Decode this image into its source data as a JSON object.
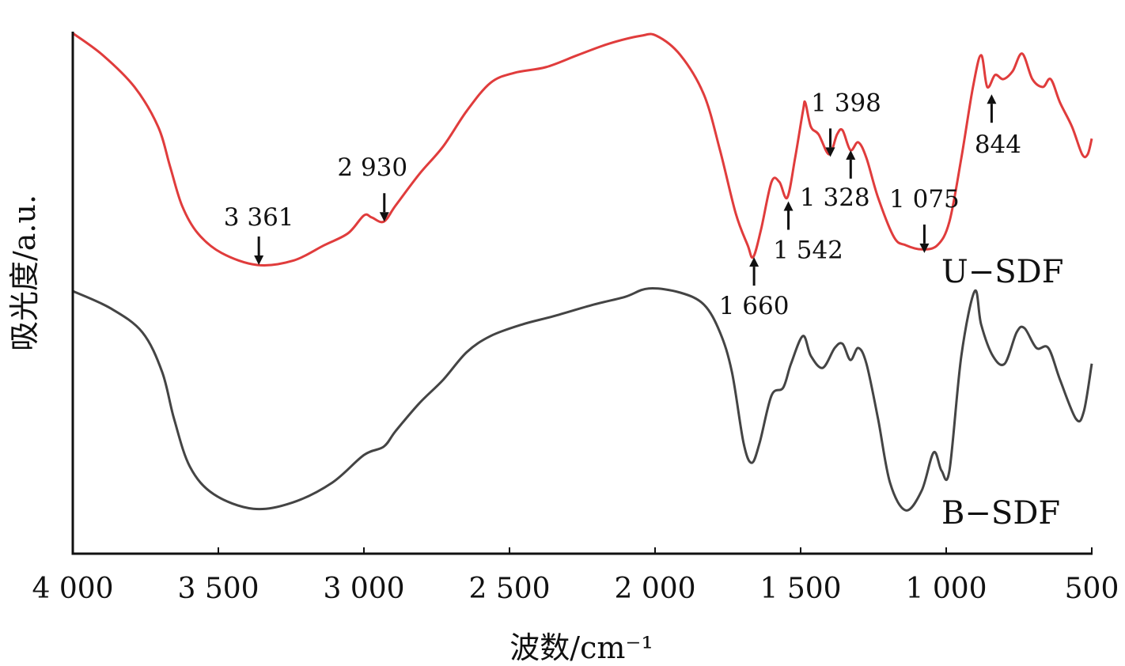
{
  "chart_data": {
    "type": "line",
    "title": "",
    "xlabel": "波数/cm⁻¹",
    "ylabel": "吸光度/a.u.",
    "xlim": [
      4000,
      500
    ],
    "ylim": [
      0,
      100
    ],
    "x_ticks": [
      4000,
      3500,
      3000,
      2500,
      2000,
      1500,
      1000,
      500
    ],
    "x_tick_labels": [
      "4 000",
      "3 500",
      "3 000",
      "2 500",
      "2 000",
      "1 500",
      "1 000",
      "500"
    ],
    "grid": false,
    "series": [
      {
        "name": "U−SDF",
        "color": "#e03c3c",
        "points": [
          [
            4000,
            99.7
          ],
          [
            3897,
            95.5
          ],
          [
            3788,
            89.4
          ],
          [
            3707,
            81.8
          ],
          [
            3666,
            74.2
          ],
          [
            3625,
            66.7
          ],
          [
            3571,
            61.4
          ],
          [
            3489,
            57.6
          ],
          [
            3367,
            55.3
          ],
          [
            3245,
            56.1
          ],
          [
            3136,
            59.1
          ],
          [
            3054,
            61.4
          ],
          [
            3000,
            64.8
          ],
          [
            2973,
            64.4
          ],
          [
            2932,
            63.6
          ],
          [
            2891,
            66.7
          ],
          [
            2810,
            72.7
          ],
          [
            2728,
            78.0
          ],
          [
            2647,
            84.8
          ],
          [
            2565,
            90.2
          ],
          [
            2484,
            92.1
          ],
          [
            2375,
            93.2
          ],
          [
            2266,
            95.5
          ],
          [
            2158,
            97.7
          ],
          [
            2049,
            99.2
          ],
          [
            1995,
            99.2
          ],
          [
            1913,
            95.5
          ],
          [
            1832,
            87.9
          ],
          [
            1777,
            77.3
          ],
          [
            1723,
            65.2
          ],
          [
            1682,
            59.1
          ],
          [
            1663,
            56.8
          ],
          [
            1636,
            62.1
          ],
          [
            1600,
            71.2
          ],
          [
            1573,
            71.2
          ],
          [
            1546,
            68.2
          ],
          [
            1519,
            75.8
          ],
          [
            1492,
            84.8
          ],
          [
            1484,
            86.4
          ],
          [
            1465,
            81.8
          ],
          [
            1438,
            80.3
          ],
          [
            1402,
            76.5
          ],
          [
            1375,
            80.3
          ],
          [
            1356,
            81.1
          ],
          [
            1329,
            77.3
          ],
          [
            1302,
            78.8
          ],
          [
            1274,
            75.8
          ],
          [
            1234,
            68.2
          ],
          [
            1179,
            60.6
          ],
          [
            1139,
            59.1
          ],
          [
            1084,
            58.3
          ],
          [
            1030,
            59.1
          ],
          [
            989,
            63.6
          ],
          [
            948,
            75.8
          ],
          [
            908,
            89.4
          ],
          [
            880,
            95.5
          ],
          [
            859,
            89.4
          ],
          [
            832,
            91.7
          ],
          [
            804,
            90.9
          ],
          [
            772,
            92.4
          ],
          [
            739,
            95.8
          ],
          [
            704,
            90.9
          ],
          [
            668,
            89.4
          ],
          [
            641,
            90.9
          ],
          [
            609,
            86.4
          ],
          [
            568,
            81.8
          ],
          [
            533,
            76.5
          ],
          [
            514,
            76.5
          ],
          [
            500,
            79.5
          ]
        ]
      },
      {
        "name": "B−SDF",
        "color": "#444444",
        "points": [
          [
            4000,
            50.3
          ],
          [
            3870,
            47.0
          ],
          [
            3761,
            42.4
          ],
          [
            3693,
            34.8
          ],
          [
            3652,
            25.8
          ],
          [
            3598,
            16.7
          ],
          [
            3516,
            11.4
          ],
          [
            3380,
            8.6
          ],
          [
            3245,
            9.8
          ],
          [
            3109,
            13.6
          ],
          [
            3000,
            18.9
          ],
          [
            2932,
            20.5
          ],
          [
            2891,
            23.5
          ],
          [
            2810,
            28.8
          ],
          [
            2728,
            33.3
          ],
          [
            2647,
            38.6
          ],
          [
            2565,
            41.7
          ],
          [
            2457,
            43.9
          ],
          [
            2348,
            45.5
          ],
          [
            2212,
            47.7
          ],
          [
            2103,
            49.2
          ],
          [
            2022,
            50.8
          ],
          [
            1913,
            50.0
          ],
          [
            1832,
            47.7
          ],
          [
            1777,
            42.4
          ],
          [
            1736,
            34.8
          ],
          [
            1696,
            21.2
          ],
          [
            1668,
            17.4
          ],
          [
            1641,
            21.2
          ],
          [
            1600,
            30.3
          ],
          [
            1560,
            31.8
          ],
          [
            1533,
            36.4
          ],
          [
            1492,
            41.7
          ],
          [
            1465,
            37.9
          ],
          [
            1424,
            35.6
          ],
          [
            1383,
            39.4
          ],
          [
            1356,
            40.2
          ],
          [
            1329,
            37.1
          ],
          [
            1302,
            39.4
          ],
          [
            1274,
            36.4
          ],
          [
            1234,
            25.8
          ],
          [
            1193,
            13.6
          ],
          [
            1139,
            8.3
          ],
          [
            1084,
            12.1
          ],
          [
            1043,
            19.4
          ],
          [
            1016,
            15.9
          ],
          [
            989,
            15.9
          ],
          [
            948,
            37.9
          ],
          [
            902,
            50.3
          ],
          [
            880,
            43.9
          ],
          [
            840,
            37.9
          ],
          [
            799,
            36.4
          ],
          [
            758,
            42.4
          ],
          [
            731,
            43.2
          ],
          [
            690,
            39.4
          ],
          [
            649,
            39.4
          ],
          [
            609,
            33.3
          ],
          [
            554,
            25.8
          ],
          [
            527,
            27.3
          ],
          [
            500,
            36.4
          ]
        ]
      }
    ],
    "annotations": [
      {
        "text": "3 361",
        "x": 3361,
        "y": 55.3,
        "arrow": "down"
      },
      {
        "text": "2 930",
        "x": 2930,
        "y": 63.6,
        "arrow": "down"
      },
      {
        "text": "1 660",
        "x": 1660,
        "y": 56.8,
        "arrow": "up"
      },
      {
        "text": "1 542",
        "x": 1542,
        "y": 67.5,
        "arrow": "up"
      },
      {
        "text": "1 398",
        "x": 1398,
        "y": 76.0,
        "arrow": "down"
      },
      {
        "text": "1 328",
        "x": 1328,
        "y": 77.3,
        "arrow": "up"
      },
      {
        "text": "1 075",
        "x": 1075,
        "y": 57.6,
        "arrow": "down"
      },
      {
        "text": "844",
        "x": 844,
        "y": 88.0,
        "arrow": "up"
      }
    ]
  }
}
